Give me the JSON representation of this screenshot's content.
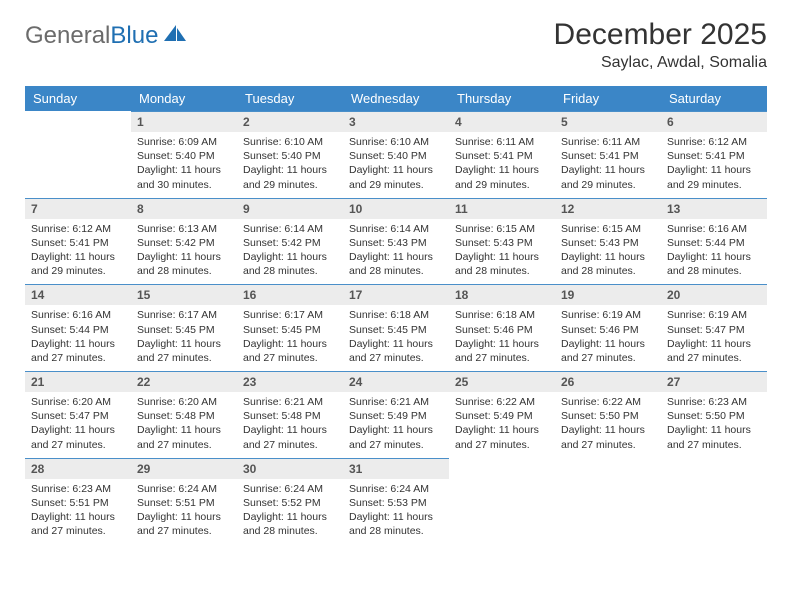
{
  "brand": {
    "word1": "General",
    "word2": "Blue"
  },
  "title": "December 2025",
  "location": "Saylac, Awdal, Somalia",
  "colors": {
    "header_bg": "#3b86c7",
    "header_text": "#ffffff",
    "daynum_bg": "#ececec",
    "cell_border": "#4a8fc9",
    "body_text": "#333333",
    "logo_gray": "#6b6b6b",
    "logo_blue": "#1f6fb2"
  },
  "weekdays": [
    "Sunday",
    "Monday",
    "Tuesday",
    "Wednesday",
    "Thursday",
    "Friday",
    "Saturday"
  ],
  "weeks": [
    [
      null,
      {
        "n": "1",
        "sr": "6:09 AM",
        "ss": "5:40 PM",
        "dl": "11 hours and 30 minutes."
      },
      {
        "n": "2",
        "sr": "6:10 AM",
        "ss": "5:40 PM",
        "dl": "11 hours and 29 minutes."
      },
      {
        "n": "3",
        "sr": "6:10 AM",
        "ss": "5:40 PM",
        "dl": "11 hours and 29 minutes."
      },
      {
        "n": "4",
        "sr": "6:11 AM",
        "ss": "5:41 PM",
        "dl": "11 hours and 29 minutes."
      },
      {
        "n": "5",
        "sr": "6:11 AM",
        "ss": "5:41 PM",
        "dl": "11 hours and 29 minutes."
      },
      {
        "n": "6",
        "sr": "6:12 AM",
        "ss": "5:41 PM",
        "dl": "11 hours and 29 minutes."
      }
    ],
    [
      {
        "n": "7",
        "sr": "6:12 AM",
        "ss": "5:41 PM",
        "dl": "11 hours and 29 minutes."
      },
      {
        "n": "8",
        "sr": "6:13 AM",
        "ss": "5:42 PM",
        "dl": "11 hours and 28 minutes."
      },
      {
        "n": "9",
        "sr": "6:14 AM",
        "ss": "5:42 PM",
        "dl": "11 hours and 28 minutes."
      },
      {
        "n": "10",
        "sr": "6:14 AM",
        "ss": "5:43 PM",
        "dl": "11 hours and 28 minutes."
      },
      {
        "n": "11",
        "sr": "6:15 AM",
        "ss": "5:43 PM",
        "dl": "11 hours and 28 minutes."
      },
      {
        "n": "12",
        "sr": "6:15 AM",
        "ss": "5:43 PM",
        "dl": "11 hours and 28 minutes."
      },
      {
        "n": "13",
        "sr": "6:16 AM",
        "ss": "5:44 PM",
        "dl": "11 hours and 28 minutes."
      }
    ],
    [
      {
        "n": "14",
        "sr": "6:16 AM",
        "ss": "5:44 PM",
        "dl": "11 hours and 27 minutes."
      },
      {
        "n": "15",
        "sr": "6:17 AM",
        "ss": "5:45 PM",
        "dl": "11 hours and 27 minutes."
      },
      {
        "n": "16",
        "sr": "6:17 AM",
        "ss": "5:45 PM",
        "dl": "11 hours and 27 minutes."
      },
      {
        "n": "17",
        "sr": "6:18 AM",
        "ss": "5:45 PM",
        "dl": "11 hours and 27 minutes."
      },
      {
        "n": "18",
        "sr": "6:18 AM",
        "ss": "5:46 PM",
        "dl": "11 hours and 27 minutes."
      },
      {
        "n": "19",
        "sr": "6:19 AM",
        "ss": "5:46 PM",
        "dl": "11 hours and 27 minutes."
      },
      {
        "n": "20",
        "sr": "6:19 AM",
        "ss": "5:47 PM",
        "dl": "11 hours and 27 minutes."
      }
    ],
    [
      {
        "n": "21",
        "sr": "6:20 AM",
        "ss": "5:47 PM",
        "dl": "11 hours and 27 minutes."
      },
      {
        "n": "22",
        "sr": "6:20 AM",
        "ss": "5:48 PM",
        "dl": "11 hours and 27 minutes."
      },
      {
        "n": "23",
        "sr": "6:21 AM",
        "ss": "5:48 PM",
        "dl": "11 hours and 27 minutes."
      },
      {
        "n": "24",
        "sr": "6:21 AM",
        "ss": "5:49 PM",
        "dl": "11 hours and 27 minutes."
      },
      {
        "n": "25",
        "sr": "6:22 AM",
        "ss": "5:49 PM",
        "dl": "11 hours and 27 minutes."
      },
      {
        "n": "26",
        "sr": "6:22 AM",
        "ss": "5:50 PM",
        "dl": "11 hours and 27 minutes."
      },
      {
        "n": "27",
        "sr": "6:23 AM",
        "ss": "5:50 PM",
        "dl": "11 hours and 27 minutes."
      }
    ],
    [
      {
        "n": "28",
        "sr": "6:23 AM",
        "ss": "5:51 PM",
        "dl": "11 hours and 27 minutes."
      },
      {
        "n": "29",
        "sr": "6:24 AM",
        "ss": "5:51 PM",
        "dl": "11 hours and 27 minutes."
      },
      {
        "n": "30",
        "sr": "6:24 AM",
        "ss": "5:52 PM",
        "dl": "11 hours and 28 minutes."
      },
      {
        "n": "31",
        "sr": "6:24 AM",
        "ss": "5:53 PM",
        "dl": "11 hours and 28 minutes."
      },
      null,
      null,
      null
    ]
  ],
  "labels": {
    "sunrise": "Sunrise:",
    "sunset": "Sunset:",
    "daylight": "Daylight:"
  }
}
